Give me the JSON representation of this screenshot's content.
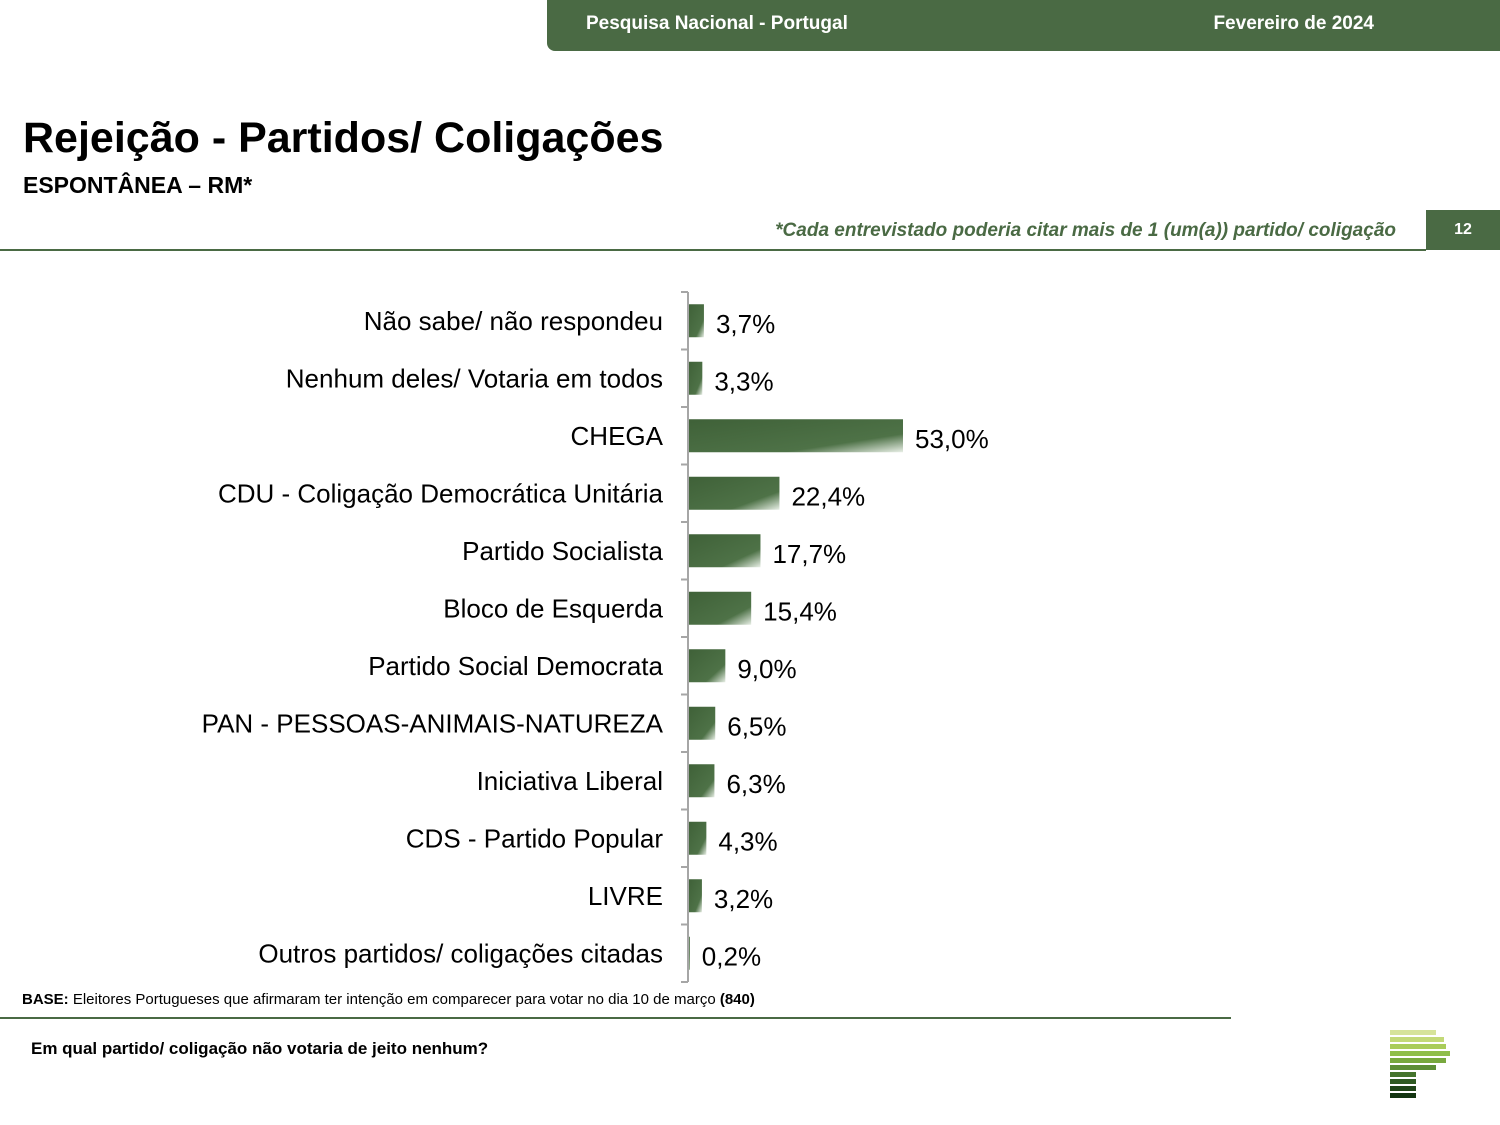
{
  "header": {
    "left": "Pesquisa Nacional - Portugal",
    "right": "Fevereiro de 2024"
  },
  "title": "Rejeição - Partidos/ Coligações",
  "subtitle": "ESPONTÂNEA – RM*",
  "note": "*Cada entrevistado poderia citar mais de 1 (um(a)) partido/ coligação",
  "page_number": "12",
  "base": {
    "label": "BASE:",
    "text": " Eleitores Portugueses que afirmaram ter intenção em comparecer para votar no dia 10 de março ",
    "count": "(840)"
  },
  "question": "Em qual partido/ coligação não votaria de jeito nenhum?",
  "colors": {
    "primary": "#4a6a44",
    "bar_dark": "#3f6138",
    "bar_light": "#ffffff"
  },
  "chart_data": {
    "type": "bar",
    "orientation": "horizontal",
    "categories": [
      "Não sabe/ não respondeu",
      "Nenhum deles/ Votaria em todos",
      "CHEGA",
      "CDU - Coligação Democrática Unitária",
      "Partido Socialista",
      "Bloco de Esquerda",
      "Partido Social Democrata",
      "PAN - PESSOAS-ANIMAIS-NATUREZA",
      "Iniciativa Liberal",
      "CDS - Partido Popular",
      "LIVRE",
      "Outros partidos/ coligações citadas"
    ],
    "values": [
      3.7,
      3.3,
      53.0,
      22.4,
      17.7,
      15.4,
      9.0,
      6.5,
      6.3,
      4.3,
      3.2,
      0.2
    ],
    "value_labels": [
      "3,7%",
      "3,3%",
      "53,0%",
      "22,4%",
      "17,7%",
      "15,4%",
      "9,0%",
      "6,5%",
      "6,3%",
      "4,3%",
      "3,2%",
      "0,2%"
    ],
    "unit": "%",
    "title": "",
    "xlabel": "",
    "ylabel": "",
    "grid": false,
    "legend": "none"
  }
}
